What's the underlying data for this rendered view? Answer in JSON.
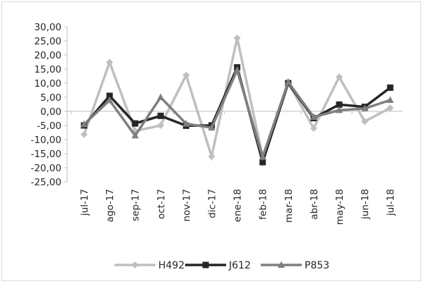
{
  "chart_data": {
    "type": "line",
    "title": "",
    "xlabel": "",
    "ylabel": "",
    "categories": [
      "jul-17",
      "ago-17",
      "sep-17",
      "oct-17",
      "nov-17",
      "dic-17",
      "ene-18",
      "feb-18",
      "mar-18",
      "abr-18",
      "may-18",
      "jun-18",
      "jul-18"
    ],
    "y_tick_labels": [
      "30,00",
      "25,00",
      "20,00",
      "15,00",
      "10,00",
      "5,00",
      "0,00",
      "-5,00",
      "-10,00",
      "-15,00",
      "-20,00",
      "-25,00"
    ],
    "ylim": [
      -25,
      30
    ],
    "y_step": 5,
    "grid": false,
    "legend_position": "bottom",
    "series": [
      {
        "name": "H492",
        "color": "#bfbfbf",
        "marker": "diamond",
        "values": [
          -8.2,
          17.4,
          -7.0,
          -5.0,
          12.8,
          -16.0,
          26.0,
          -16.0,
          10.2,
          -6.0,
          12.2,
          -3.6,
          1.2
        ]
      },
      {
        "name": "J612",
        "color": "#262626",
        "marker": "square",
        "values": [
          -5.0,
          5.5,
          -4.3,
          -1.6,
          -5.1,
          -5.0,
          15.6,
          -18.0,
          10.0,
          -2.4,
          2.4,
          1.6,
          8.4
        ]
      },
      {
        "name": "P853",
        "color": "#7f7f7f",
        "marker": "triangle",
        "values": [
          -4.6,
          3.9,
          -8.6,
          5.0,
          -4.4,
          -5.8,
          14.6,
          -16.2,
          10.4,
          -2.0,
          0.4,
          1.0,
          4.0
        ]
      }
    ]
  }
}
